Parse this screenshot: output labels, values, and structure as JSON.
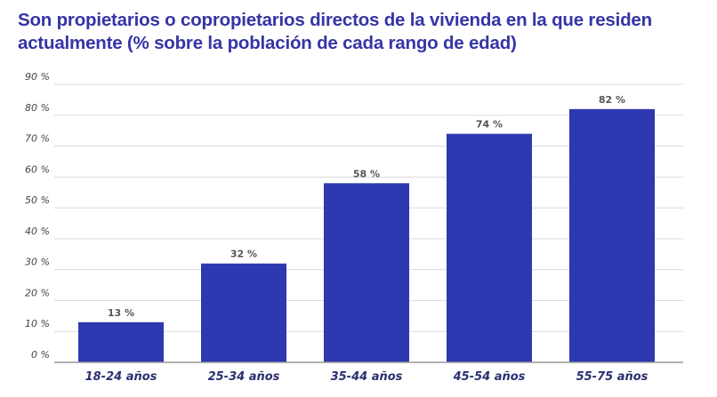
{
  "chart_data": {
    "type": "bar",
    "title": "Son propietarios o copropietarios directos de la vivienda en la que residen actualmente (% sobre la población de cada rango de edad)",
    "categories": [
      "18-24 años",
      "25-34 años",
      "35-44 años",
      "45-54 años",
      "55-75 años"
    ],
    "values": [
      13,
      32,
      58,
      74,
      82
    ],
    "data_labels": [
      "13 %",
      "32 %",
      "58 %",
      "74 %",
      "82 %"
    ],
    "yticks": [
      0,
      10,
      20,
      30,
      40,
      50,
      60,
      70,
      80,
      90
    ],
    "ytick_labels": [
      "0 %",
      "10 %",
      "20 %",
      "30 %",
      "40 %",
      "50 %",
      "60 %",
      "70 %",
      "80 %",
      "90 %"
    ],
    "ylim": [
      0,
      90
    ],
    "grid": true,
    "legend": "none",
    "colors": {
      "bar": "#2e38b0",
      "title": "#3535a6",
      "grid": "#d9d9d9",
      "axis": "#999999"
    }
  }
}
